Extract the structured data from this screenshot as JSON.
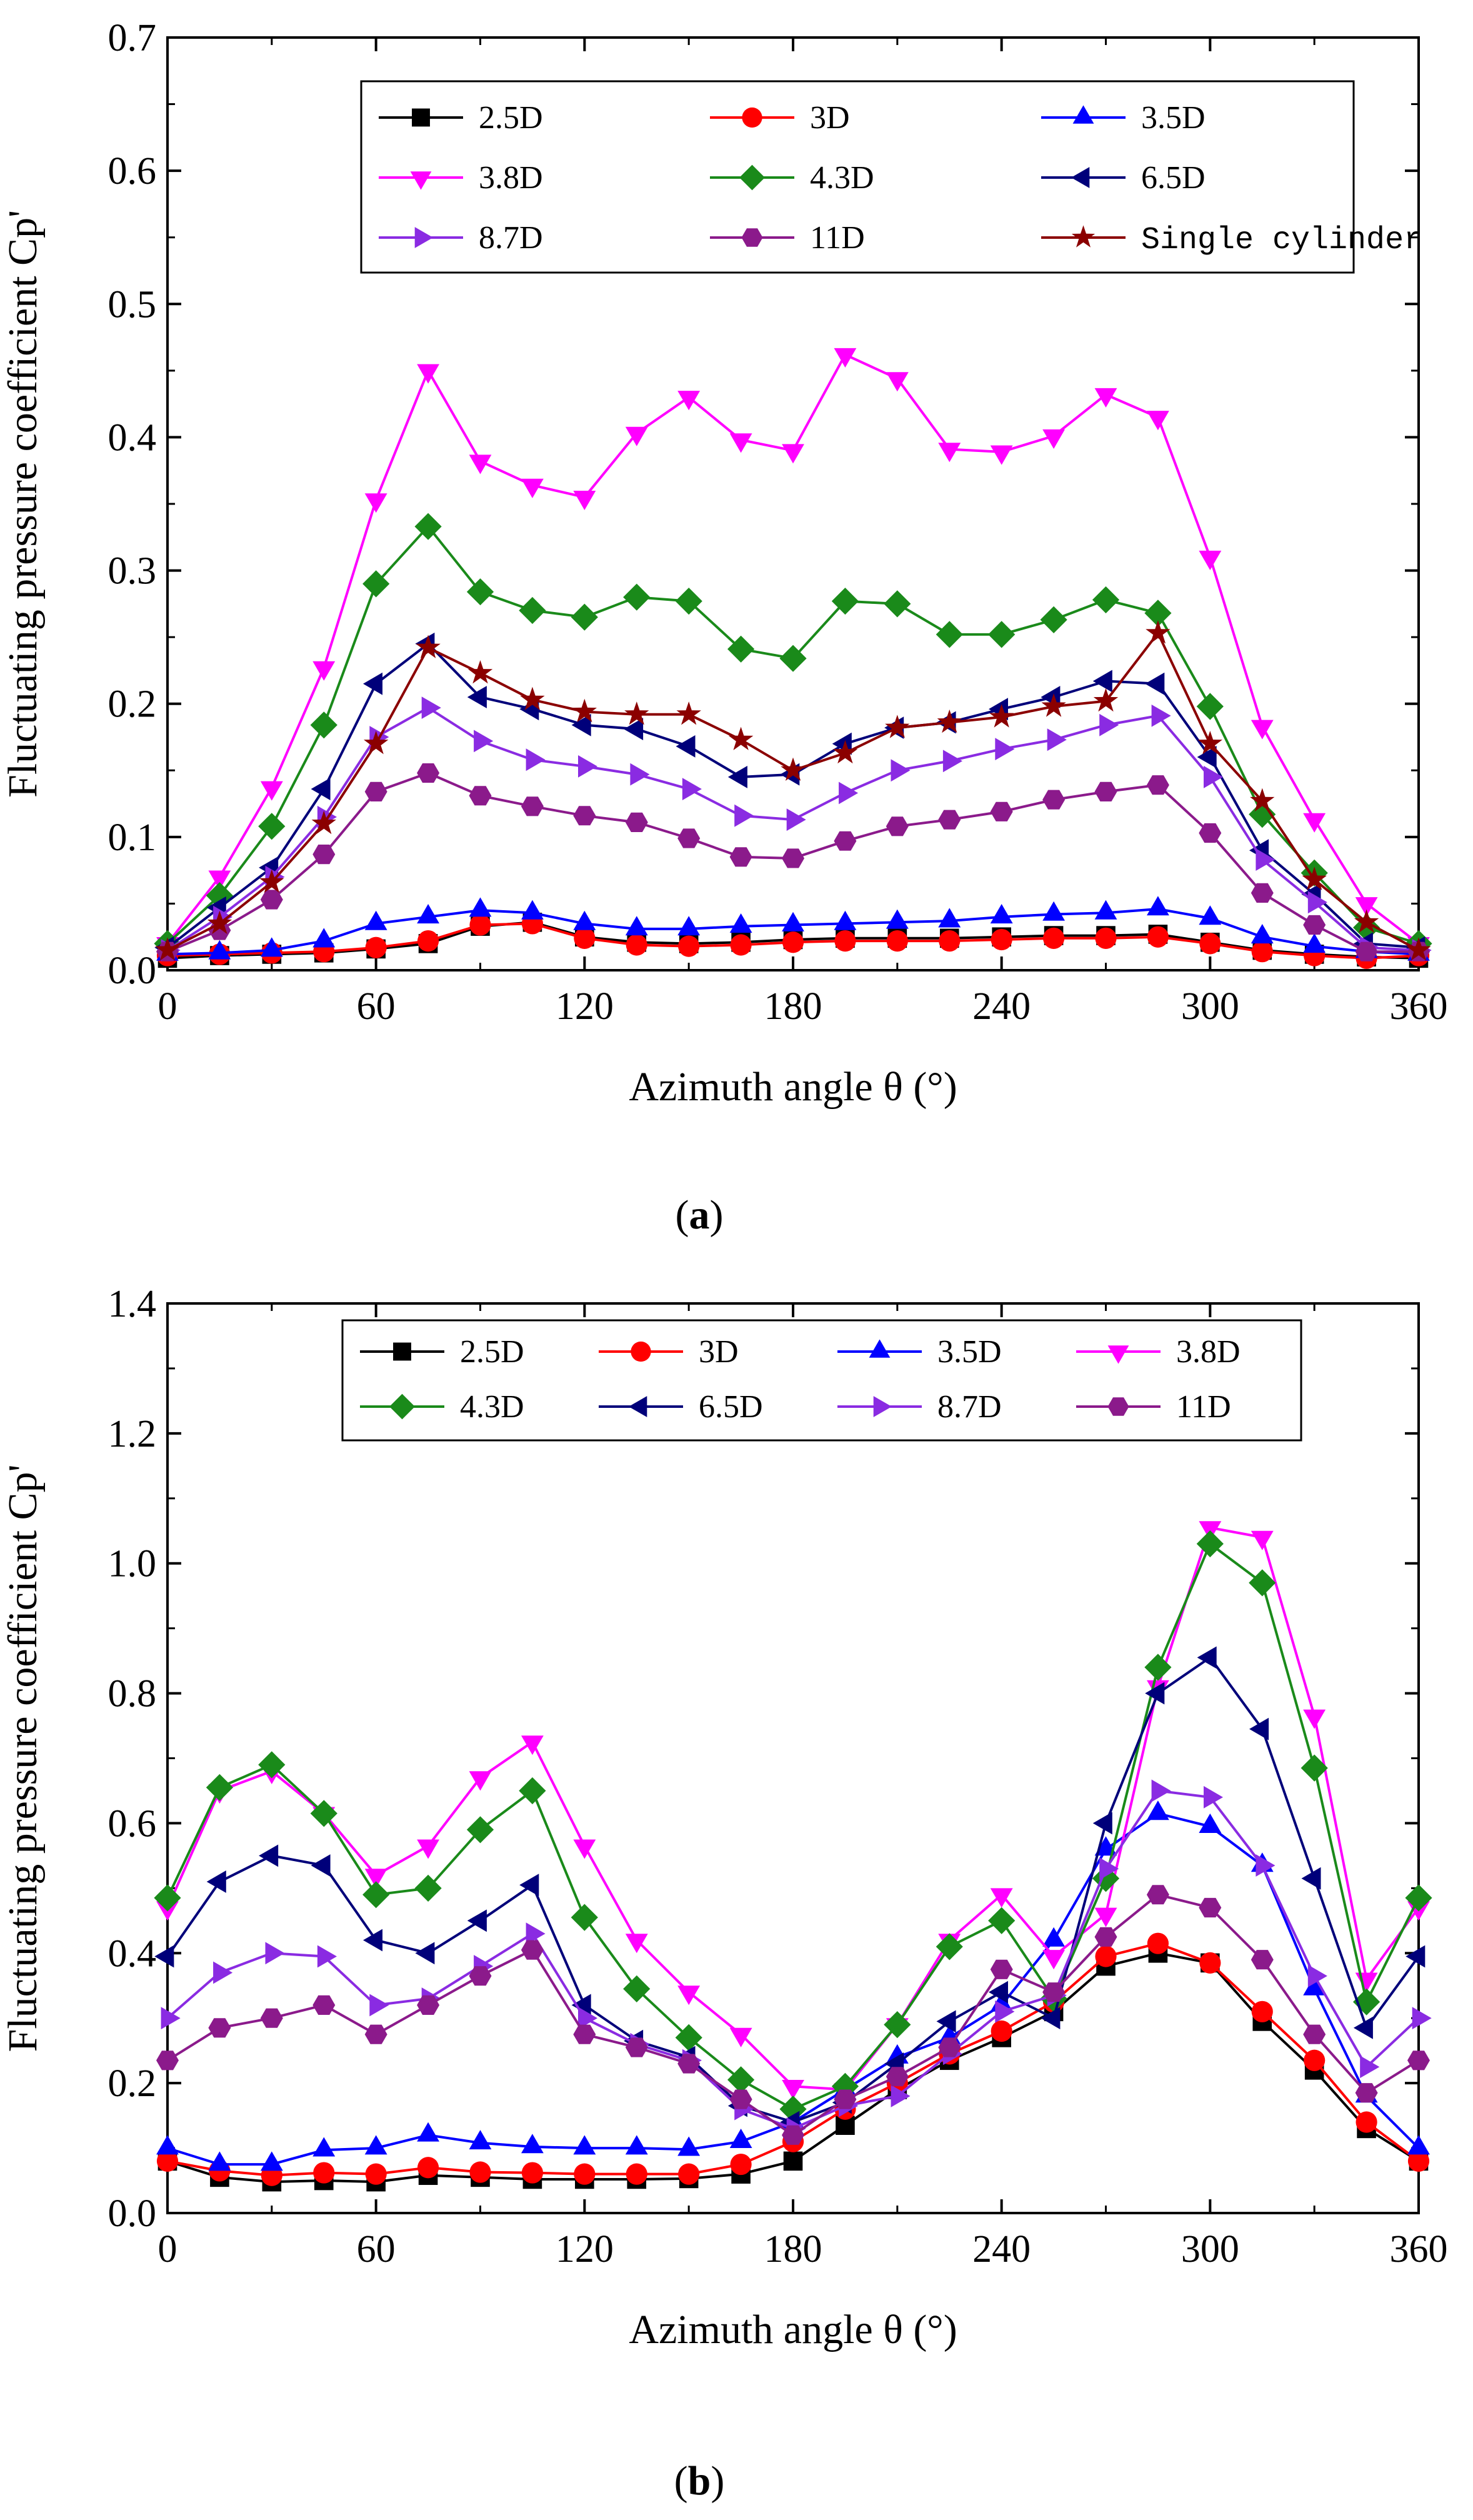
{
  "chart_data": [
    {
      "type": "line",
      "panel_label": "(a)",
      "panel_letter": "a",
      "xlabel": "Azimuth angle θ (°)",
      "ylabel": "Fluctuating pressure coefficient Cp'",
      "xlim": [
        0,
        360
      ],
      "ylim": [
        0,
        0.7
      ],
      "xticks": [
        0,
        60,
        120,
        180,
        240,
        300,
        360
      ],
      "yticks": [
        0.0,
        0.1,
        0.2,
        0.3,
        0.4,
        0.5,
        0.6,
        0.7
      ],
      "ytick_labels": [
        "0.0",
        "0.1",
        "0.2",
        "0.3",
        "0.4",
        "0.5",
        "0.6",
        "0.7"
      ],
      "legend_columns": 3,
      "x": [
        0,
        15,
        30,
        45,
        60,
        75,
        90,
        105,
        120,
        135,
        150,
        165,
        180,
        195,
        210,
        225,
        240,
        255,
        270,
        285,
        300,
        315,
        330,
        345,
        360
      ],
      "series": [
        {
          "name": "2.5D",
          "color": "#000000",
          "marker": "square",
          "values": [
            0.009,
            0.011,
            0.012,
            0.013,
            0.016,
            0.02,
            0.033,
            0.036,
            0.025,
            0.021,
            0.02,
            0.021,
            0.023,
            0.024,
            0.024,
            0.024,
            0.025,
            0.026,
            0.026,
            0.027,
            0.021,
            0.015,
            0.012,
            0.01,
            0.009
          ]
        },
        {
          "name": "3D",
          "color": "#ff0000",
          "marker": "circle",
          "values": [
            0.011,
            0.012,
            0.013,
            0.014,
            0.017,
            0.022,
            0.034,
            0.035,
            0.024,
            0.019,
            0.018,
            0.019,
            0.021,
            0.022,
            0.022,
            0.022,
            0.023,
            0.024,
            0.024,
            0.025,
            0.02,
            0.014,
            0.011,
            0.009,
            0.011
          ]
        },
        {
          "name": "3.5D",
          "color": "#0000ff",
          "marker": "triangle-up",
          "values": [
            0.012,
            0.013,
            0.015,
            0.022,
            0.035,
            0.04,
            0.045,
            0.043,
            0.035,
            0.031,
            0.031,
            0.033,
            0.034,
            0.035,
            0.036,
            0.037,
            0.04,
            0.042,
            0.043,
            0.046,
            0.039,
            0.025,
            0.018,
            0.014,
            0.012
          ]
        },
        {
          "name": "3.8D",
          "color": "#ff00ff",
          "marker": "triangle-down",
          "values": [
            0.02,
            0.07,
            0.137,
            0.227,
            0.353,
            0.45,
            0.382,
            0.364,
            0.355,
            0.403,
            0.43,
            0.398,
            0.39,
            0.462,
            0.444,
            0.391,
            0.389,
            0.401,
            0.432,
            0.415,
            0.31,
            0.183,
            0.113,
            0.05,
            0.02
          ]
        },
        {
          "name": "4.3D",
          "color": "#1a8a1a",
          "marker": "diamond",
          "values": [
            0.02,
            0.056,
            0.108,
            0.184,
            0.29,
            0.333,
            0.284,
            0.27,
            0.265,
            0.28,
            0.277,
            0.241,
            0.234,
            0.277,
            0.275,
            0.252,
            0.252,
            0.263,
            0.278,
            0.268,
            0.198,
            0.117,
            0.073,
            0.032,
            0.02
          ]
        },
        {
          "name": "6.5D",
          "color": "#00007a",
          "marker": "triangle-left",
          "values": [
            0.017,
            0.047,
            0.077,
            0.136,
            0.215,
            0.245,
            0.205,
            0.196,
            0.184,
            0.181,
            0.168,
            0.145,
            0.147,
            0.17,
            0.182,
            0.186,
            0.196,
            0.205,
            0.217,
            0.215,
            0.16,
            0.09,
            0.057,
            0.02,
            0.017
          ]
        },
        {
          "name": "8.7D",
          "color": "#8a2be2",
          "marker": "triangle-right",
          "values": [
            0.015,
            0.04,
            0.07,
            0.115,
            0.175,
            0.197,
            0.172,
            0.158,
            0.153,
            0.147,
            0.136,
            0.116,
            0.113,
            0.133,
            0.15,
            0.157,
            0.166,
            0.173,
            0.184,
            0.191,
            0.145,
            0.083,
            0.051,
            0.017,
            0.015
          ]
        },
        {
          "name": "11D",
          "color": "#8b1a8b",
          "marker": "hexagon",
          "values": [
            0.014,
            0.03,
            0.053,
            0.087,
            0.134,
            0.148,
            0.131,
            0.123,
            0.116,
            0.111,
            0.099,
            0.085,
            0.084,
            0.097,
            0.108,
            0.113,
            0.119,
            0.128,
            0.134,
            0.139,
            0.103,
            0.058,
            0.034,
            0.014,
            0.014
          ]
        },
        {
          "name": "Single cylinder",
          "color": "#8b0000",
          "marker": "star",
          "values": [
            0.015,
            0.035,
            0.066,
            0.11,
            0.17,
            0.242,
            0.223,
            0.203,
            0.194,
            0.192,
            0.192,
            0.173,
            0.15,
            0.163,
            0.182,
            0.186,
            0.19,
            0.198,
            0.202,
            0.253,
            0.17,
            0.127,
            0.068,
            0.036,
            0.015
          ]
        }
      ]
    },
    {
      "type": "line",
      "panel_label": "(b)",
      "panel_letter": "b",
      "xlabel": "Azimuth angle θ (°)",
      "ylabel": "Fluctuating pressure coefficient Cp'",
      "xlim": [
        0,
        360
      ],
      "ylim": [
        0,
        1.4
      ],
      "xticks": [
        0,
        60,
        120,
        180,
        240,
        300,
        360
      ],
      "yticks": [
        0.0,
        0.2,
        0.4,
        0.6,
        0.8,
        1.0,
        1.2,
        1.4
      ],
      "ytick_labels": [
        "0.0",
        "0.2",
        "0.4",
        "0.6",
        "0.8",
        "1.0",
        "1.2",
        "1.4"
      ],
      "legend_columns": 4,
      "x": [
        0,
        15,
        30,
        45,
        60,
        75,
        90,
        105,
        120,
        135,
        150,
        165,
        180,
        195,
        210,
        225,
        240,
        255,
        270,
        285,
        300,
        315,
        330,
        345,
        360
      ],
      "series": [
        {
          "name": "2.5D",
          "color": "#000000",
          "marker": "square",
          "values": [
            0.08,
            0.055,
            0.048,
            0.05,
            0.048,
            0.058,
            0.055,
            0.052,
            0.052,
            0.052,
            0.053,
            0.06,
            0.08,
            0.135,
            0.19,
            0.235,
            0.27,
            0.31,
            0.38,
            0.4,
            0.385,
            0.295,
            0.22,
            0.13,
            0.08
          ]
        },
        {
          "name": "3D",
          "color": "#ff0000",
          "marker": "circle",
          "values": [
            0.08,
            0.065,
            0.058,
            0.062,
            0.06,
            0.07,
            0.063,
            0.062,
            0.06,
            0.06,
            0.06,
            0.075,
            0.11,
            0.16,
            0.2,
            0.245,
            0.28,
            0.325,
            0.395,
            0.415,
            0.385,
            0.31,
            0.235,
            0.14,
            0.08
          ]
        },
        {
          "name": "3.5D",
          "color": "#0000ff",
          "marker": "triangle-up",
          "values": [
            0.1,
            0.075,
            0.075,
            0.097,
            0.1,
            0.12,
            0.108,
            0.102,
            0.1,
            0.1,
            0.098,
            0.11,
            0.14,
            0.19,
            0.24,
            0.27,
            0.32,
            0.42,
            0.56,
            0.615,
            0.595,
            0.535,
            0.345,
            0.18,
            0.1
          ]
        },
        {
          "name": "3.8D",
          "color": "#ff00ff",
          "marker": "triangle-down",
          "values": [
            0.47,
            0.65,
            0.68,
            0.615,
            0.52,
            0.565,
            0.67,
            0.725,
            0.565,
            0.42,
            0.34,
            0.275,
            0.195,
            0.19,
            0.29,
            0.42,
            0.49,
            0.395,
            0.46,
            0.81,
            1.055,
            1.04,
            0.765,
            0.36,
            0.47
          ]
        },
        {
          "name": "4.3D",
          "color": "#1a8a1a",
          "marker": "diamond",
          "values": [
            0.485,
            0.655,
            0.69,
            0.615,
            0.49,
            0.5,
            0.59,
            0.65,
            0.455,
            0.345,
            0.27,
            0.205,
            0.16,
            0.195,
            0.29,
            0.41,
            0.45,
            0.33,
            0.515,
            0.84,
            1.03,
            0.97,
            0.685,
            0.325,
            0.485
          ]
        },
        {
          "name": "6.5D",
          "color": "#00007a",
          "marker": "triangle-left",
          "values": [
            0.395,
            0.51,
            0.55,
            0.535,
            0.42,
            0.4,
            0.45,
            0.505,
            0.32,
            0.265,
            0.24,
            0.165,
            0.14,
            0.17,
            0.23,
            0.295,
            0.34,
            0.3,
            0.6,
            0.8,
            0.855,
            0.745,
            0.515,
            0.285,
            0.395
          ]
        },
        {
          "name": "8.7D",
          "color": "#8a2be2",
          "marker": "triangle-right",
          "values": [
            0.3,
            0.37,
            0.4,
            0.395,
            0.32,
            0.33,
            0.38,
            0.43,
            0.3,
            0.26,
            0.235,
            0.16,
            0.13,
            0.165,
            0.18,
            0.245,
            0.31,
            0.335,
            0.53,
            0.65,
            0.64,
            0.535,
            0.365,
            0.225,
            0.3
          ]
        },
        {
          "name": "11D",
          "color": "#8b1a8b",
          "marker": "hexagon",
          "values": [
            0.235,
            0.285,
            0.3,
            0.32,
            0.275,
            0.32,
            0.365,
            0.405,
            0.275,
            0.255,
            0.23,
            0.175,
            0.12,
            0.175,
            0.21,
            0.255,
            0.375,
            0.34,
            0.425,
            0.49,
            0.47,
            0.39,
            0.275,
            0.185,
            0.235
          ]
        }
      ]
    }
  ]
}
